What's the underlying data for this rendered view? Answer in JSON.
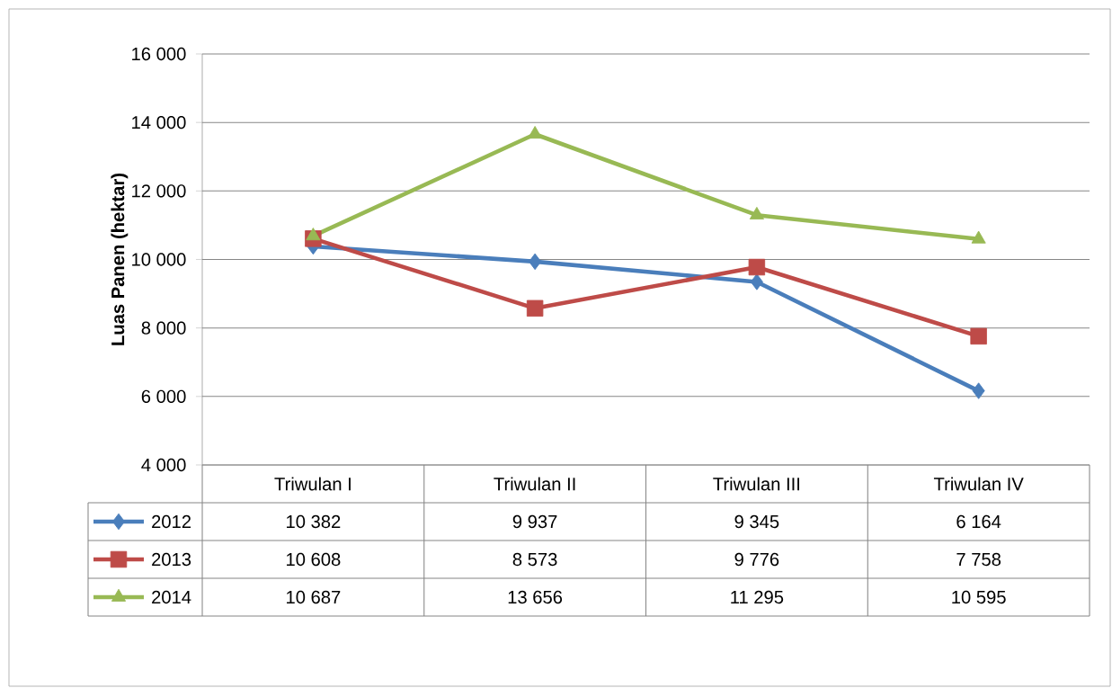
{
  "chart_data": {
    "type": "line",
    "ylabel": "Luas Panen (hektar)",
    "categories": [
      "Triwulan I",
      "Triwulan II",
      "Triwulan III",
      "Triwulan IV"
    ],
    "series": [
      {
        "name": "2012",
        "color": "#4a7ebb",
        "marker": "diamond",
        "values": [
          10382,
          9937,
          9345,
          6164
        ],
        "value_labels": [
          "10 382",
          "9 937",
          "9 345",
          "6 164"
        ]
      },
      {
        "name": "2013",
        "color": "#be4b48",
        "marker": "square",
        "values": [
          10608,
          8573,
          9776,
          7758
        ],
        "value_labels": [
          "10 608",
          "8 573",
          "9 776",
          "7 758"
        ]
      },
      {
        "name": "2014",
        "color": "#98b954",
        "marker": "triangle",
        "values": [
          10687,
          13656,
          11295,
          10595
        ],
        "value_labels": [
          "10 687",
          "13 656",
          "11 295",
          "10 595"
        ]
      }
    ],
    "ylim": [
      4000,
      16000
    ],
    "yticks": [
      {
        "value": 4000,
        "label": "4 000"
      },
      {
        "value": 6000,
        "label": "6 000"
      },
      {
        "value": 8000,
        "label": "8 000"
      },
      {
        "value": 10000,
        "label": "10 000"
      },
      {
        "value": 12000,
        "label": "12 000"
      },
      {
        "value": 14000,
        "label": "14 000"
      },
      {
        "value": 16000,
        "label": "16 000"
      }
    ],
    "grid": "y",
    "legend": "bottom",
    "line_style": "solid"
  }
}
